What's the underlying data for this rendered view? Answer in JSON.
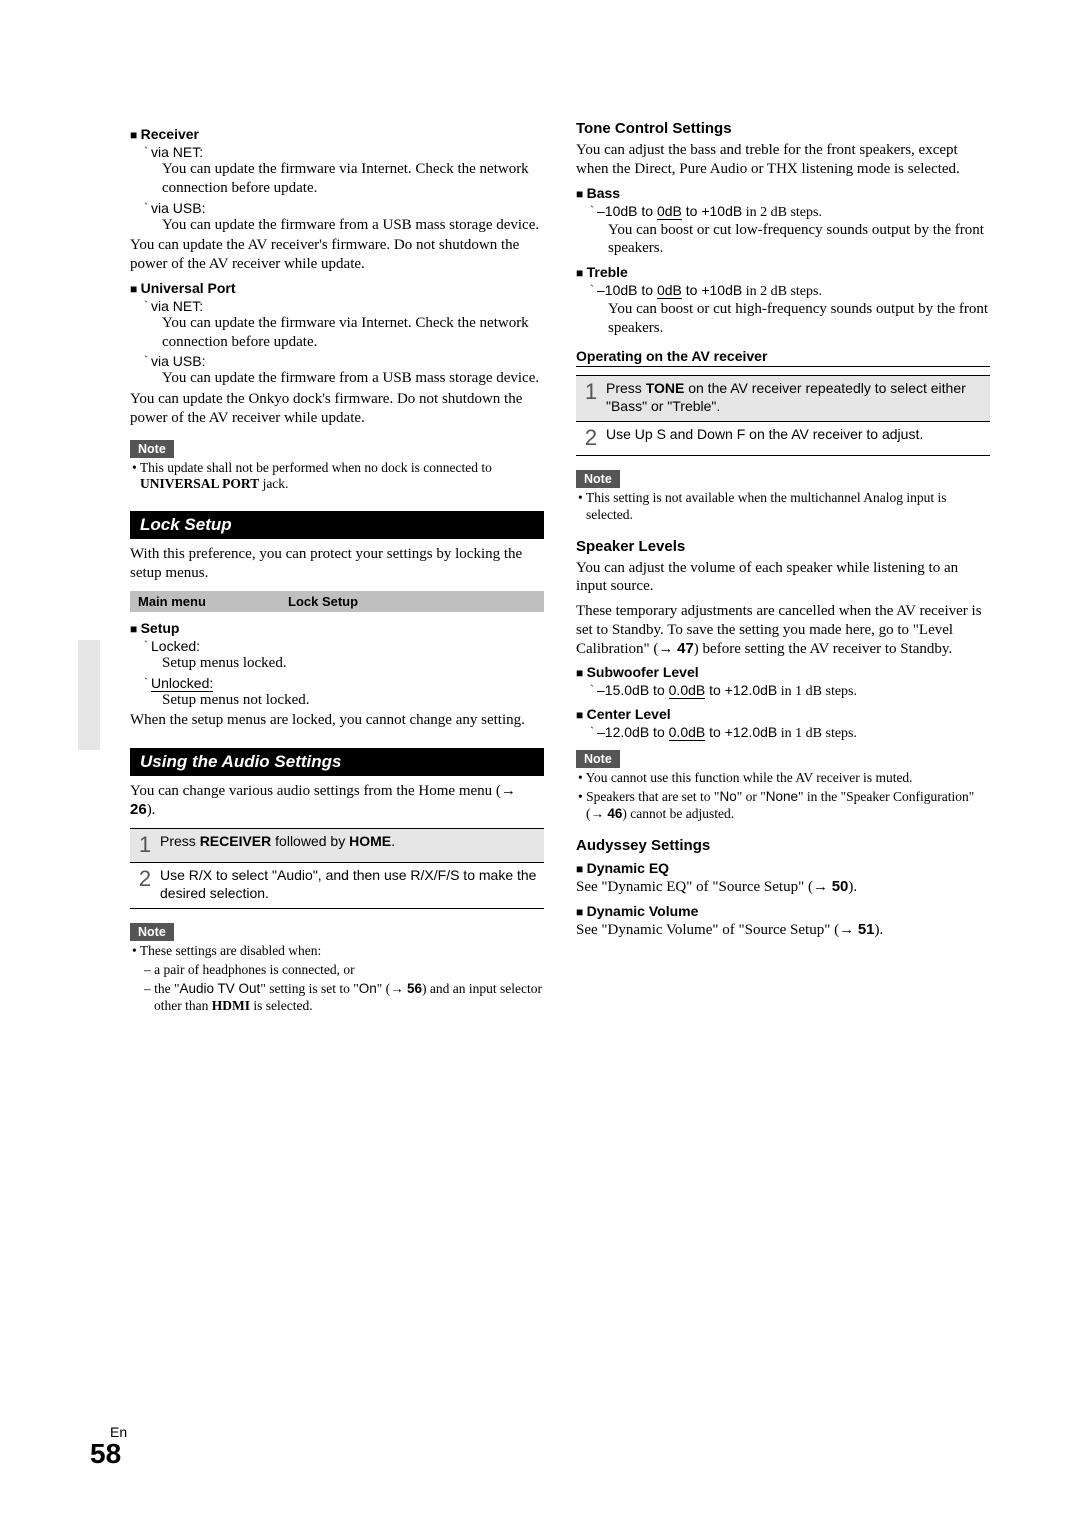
{
  "page": {
    "lang": "En",
    "number": "58"
  },
  "col1": {
    "receiver": {
      "heading": "Receiver",
      "opts": [
        {
          "label": "via NET:",
          "desc": "You can update the firmware via Internet. Check the network connection before update."
        },
        {
          "label": "via USB:",
          "desc": "You can update the firmware from a USB mass storage device."
        }
      ],
      "tail": "You can update the AV receiver's firmware. Do not shutdown the power of the AV receiver while update."
    },
    "uniport": {
      "heading": "Universal Port",
      "opts": [
        {
          "label": "via NET:",
          "desc": "You can update the firmware via Internet. Check the network connection before update."
        },
        {
          "label": "via USB:",
          "desc": "You can update the firmware from a USB mass storage device."
        }
      ],
      "tail": "You can update the Onkyo dock's firmware. Do not shutdown the power of the AV receiver while update."
    },
    "note1": {
      "badge": "Note",
      "line_pre": "• This update shall not be performed when no dock is connected to ",
      "line_bold": "UNIVERSAL PORT",
      "line_post": " jack."
    },
    "lock": {
      "title": "Lock Setup",
      "intro": "With this preference, you can protect your settings by locking the setup menus.",
      "crumb_l": "Main menu",
      "crumb_r": "Lock Setup",
      "setup_h": "Setup",
      "opts": [
        {
          "label": "Locked:",
          "desc": "Setup menus locked."
        },
        {
          "label": "Unlocked:",
          "desc": "Setup menus not locked.",
          "underline": true
        }
      ],
      "tail": "When the setup menus are locked, you cannot change any setting."
    },
    "audio": {
      "title": "Using the Audio Settings",
      "intro_pre": "You can change various audio settings from the Home menu (",
      "intro_ref": "26",
      "intro_post": ").",
      "steps": [
        {
          "n": "1",
          "pre": "Press ",
          "b1": "RECEIVER",
          "mid": " followed by ",
          "b2": "HOME",
          "post": "."
        },
        {
          "n": "2",
          "txt": "Use R/X to select \"Audio\", and then use R/X/F/S to make the desired selection."
        }
      ],
      "note_badge": "Note",
      "note_lead": "• These settings are disabled when:",
      "note_a": "– a pair of headphones is connected, or",
      "note_b_pre": "– the \"",
      "note_b_s1": "Audio TV Out",
      "note_b_mid1": "\" setting is set to \"",
      "note_b_s2": "On",
      "note_b_mid2": "\" (",
      "note_b_ref": "56",
      "note_b_mid3": ") and an input selector other than ",
      "note_b_bold": "HDMI",
      "note_b_post": " is selected."
    }
  },
  "col2": {
    "tone": {
      "title": "Tone Control Settings",
      "intro": "You can adjust the bass and treble for the front speakers, except when the Direct, Pure Audio or THX listening mode is selected.",
      "bass_h": "Bass",
      "bass_range_a": "–10dB",
      "bass_range_b": "0dB",
      "bass_range_c": "+10dB",
      "bass_range_d": " in 2 dB steps.",
      "bass_desc": "You can boost or cut low-frequency sounds output by the front speakers.",
      "treble_h": "Treble",
      "treble_desc": "You can boost or cut high-frequency sounds output by the front speakers.",
      "op_h": "Operating on the AV receiver",
      "steps": [
        {
          "n": "1",
          "pre": "Press ",
          "b": "TONE",
          "post": " on the AV receiver repeatedly to select either \"Bass\" or \"Treble\"."
        },
        {
          "n": "2",
          "txt": "Use Up S and Down F on the AV receiver to adjust."
        }
      ],
      "note_badge": "Note",
      "note_txt": "• This setting is not available when the multichannel Analog input is selected."
    },
    "spk": {
      "title": "Speaker Levels",
      "p1": "You can adjust the volume of each speaker while listening to an input source.",
      "p2_pre": "These temporary adjustments are cancelled when the AV receiver is set to Standby. To save the setting you made here, go to \"Level Calibration\" (",
      "p2_ref": "47",
      "p2_post": ") before setting the AV receiver to Standby.",
      "sub_h": "Subwoofer Level",
      "sub_a": "–15.0dB",
      "sub_b": "0.0dB",
      "sub_c": "+12.0dB",
      "sub_d": " in 1 dB steps.",
      "ctr_h": "Center Level",
      "ctr_a": "–12.0dB",
      "ctr_b": "0.0dB",
      "ctr_c": "+12.0dB",
      "ctr_d": " in 1 dB steps.",
      "note_badge": "Note",
      "note1": "• You cannot use this function while the AV receiver is muted.",
      "note2_pre": "• Speakers that are set to \"",
      "note2_s1": "No",
      "note2_mid": "\" or \"",
      "note2_s2": "None",
      "note2_mid2": "\" in the \"Speaker Configuration\" (",
      "note2_ref": "46",
      "note2_post": ") cannot be adjusted."
    },
    "aud": {
      "title": "Audyssey Settings",
      "deq_h": "Dynamic EQ",
      "deq_pre": "See \"Dynamic EQ\" of \"Source Setup\" (",
      "deq_ref": "50",
      "deq_post": ").",
      "dvol_h": "Dynamic Volume",
      "dvol_pre": "See \"Dynamic Volume\" of \"Source Setup\" (",
      "dvol_ref": "51",
      "dvol_post": ")."
    }
  }
}
